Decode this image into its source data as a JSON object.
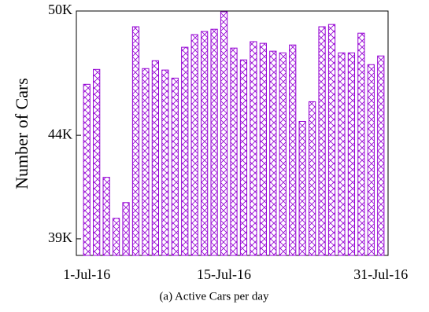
{
  "chart_data": {
    "type": "bar",
    "y_label": "Number of Cars",
    "caption": "(a) Active Cars per day",
    "categories": [
      "1-Jul-16",
      null,
      null,
      null,
      null,
      null,
      null,
      null,
      null,
      null,
      null,
      null,
      null,
      null,
      "15-Jul-16",
      null,
      null,
      null,
      null,
      null,
      null,
      null,
      null,
      null,
      null,
      null,
      null,
      null,
      null,
      null,
      "31-Jul-16"
    ],
    "values": [
      46460,
      47180,
      41970,
      39990,
      40750,
      49240,
      47220,
      47600,
      47150,
      46760,
      48250,
      48860,
      49010,
      49120,
      49960,
      48210,
      47640,
      48520,
      48440,
      48060,
      47980,
      48360,
      44670,
      45620,
      49240,
      49350,
      47980,
      47980,
      48930,
      47410,
      47830
    ],
    "color": "#9400d3",
    "ylim": [
      38200,
      50000
    ],
    "yticks": [
      {
        "value": 39000,
        "label": "39K"
      },
      {
        "value": 44000,
        "label": "44K"
      },
      {
        "value": 50000,
        "label": "50K"
      }
    ]
  }
}
